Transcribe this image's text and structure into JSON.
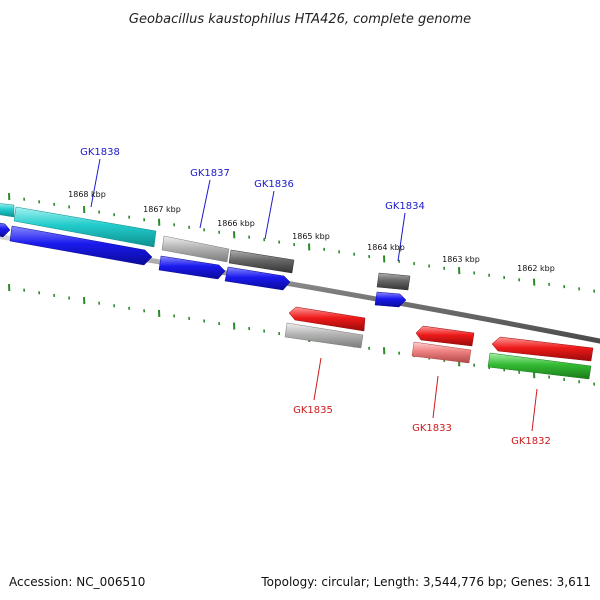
{
  "title": "Geobacillus kaustophilus HTA426, complete genome",
  "footer": {
    "accession": "Accession: NC_006510",
    "stats": "Topology: circular; Length: 3,544,776 bp; Genes: 3,611"
  },
  "colors": {
    "backbone": "#808080",
    "tick": "#2a8a2a",
    "forward_label": "#1a1acc",
    "reverse_label": "#cc1a1a",
    "cyan": "#22cccc",
    "blue": "#1a1aee",
    "light_gray": "#b4b4b4",
    "dark_gray": "#666666",
    "red": "#ee1a1a",
    "pink": "#ee8080",
    "green": "#33bb33"
  },
  "kbp_marks": [
    {
      "label": "1868 kbp"
    },
    {
      "label": "1867 kbp"
    },
    {
      "label": "1866 kbp"
    },
    {
      "label": "1865 kbp"
    },
    {
      "label": "1864 kbp"
    },
    {
      "label": "1863 kbp"
    },
    {
      "label": "1862 kbp"
    }
  ],
  "forward_genes": [
    {
      "name": "GK1838"
    },
    {
      "name": "GK1837"
    },
    {
      "name": "GK1836"
    },
    {
      "name": "GK1834"
    }
  ],
  "reverse_genes": [
    {
      "name": "GK1835"
    },
    {
      "name": "GK1833"
    },
    {
      "name": "GK1832"
    }
  ]
}
